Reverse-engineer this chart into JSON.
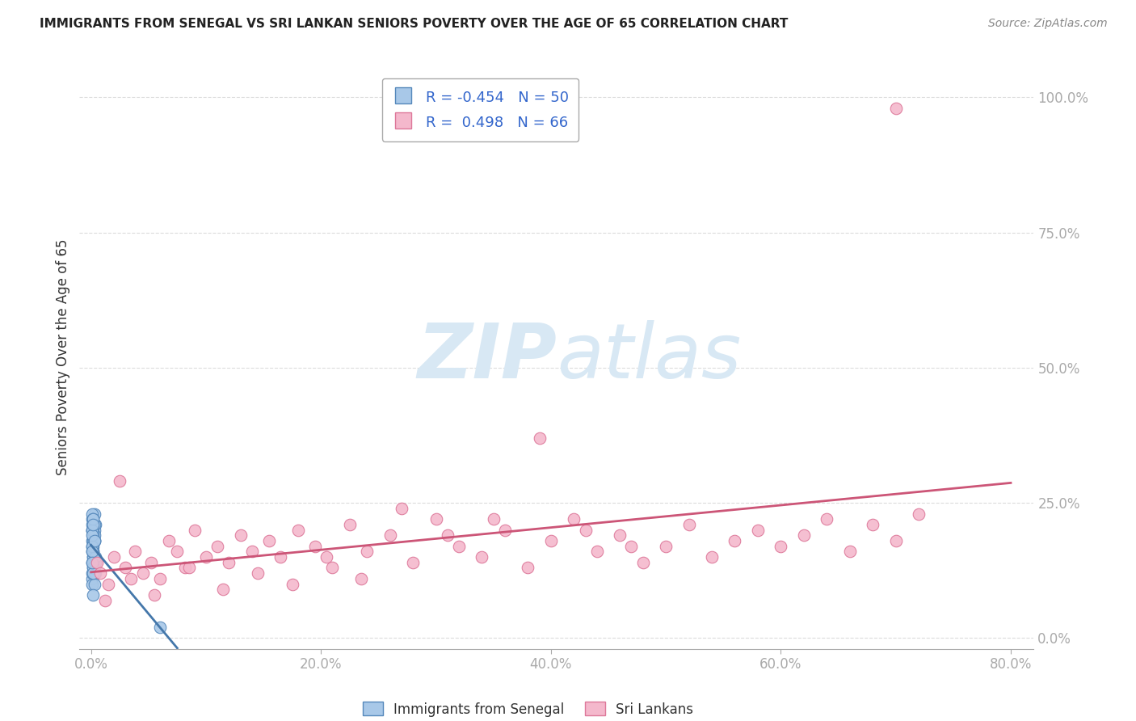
{
  "title": "IMMIGRANTS FROM SENEGAL VS SRI LANKAN SENIORS POVERTY OVER THE AGE OF 65 CORRELATION CHART",
  "source": "Source: ZipAtlas.com",
  "xlabel_tick_vals": [
    0.0,
    0.2,
    0.4,
    0.6,
    0.8
  ],
  "ylabel_tick_vals": [
    0.0,
    0.25,
    0.5,
    0.75,
    1.0
  ],
  "ylabel_tick_labels": [
    "0.0%",
    "25.0%",
    "50.0%",
    "75.0%",
    "100.0%"
  ],
  "ylabel_label": "Seniors Poverty Over the Age of 65",
  "legend_labels": [
    "Immigrants from Senegal",
    "Sri Lankans"
  ],
  "blue_R": -0.454,
  "blue_N": 50,
  "pink_R": 0.498,
  "pink_N": 66,
  "blue_color": "#a8c8e8",
  "blue_edge_color": "#5588bb",
  "blue_line_color": "#4477aa",
  "pink_color": "#f4b8cc",
  "pink_edge_color": "#dd7799",
  "pink_line_color": "#cc5577",
  "watermark_color": "#d8e8f4",
  "background_color": "#ffffff",
  "grid_color": "#cccccc",
  "title_color": "#222222",
  "axis_tick_color": "#3366cc",
  "blue_scatter_x": [
    0.001,
    0.002,
    0.001,
    0.003,
    0.002,
    0.001,
    0.004,
    0.002,
    0.001,
    0.003,
    0.002,
    0.001,
    0.004,
    0.002,
    0.003,
    0.001,
    0.002,
    0.003,
    0.001,
    0.002,
    0.003,
    0.001,
    0.002,
    0.001,
    0.003,
    0.002,
    0.001,
    0.004,
    0.002,
    0.001,
    0.003,
    0.002,
    0.001,
    0.003,
    0.002,
    0.001,
    0.003,
    0.002,
    0.004,
    0.001,
    0.002,
    0.001,
    0.003,
    0.002,
    0.001,
    0.002,
    0.003,
    0.001,
    0.06,
    0.002
  ],
  "blue_scatter_y": [
    0.22,
    0.2,
    0.18,
    0.23,
    0.15,
    0.17,
    0.21,
    0.19,
    0.14,
    0.2,
    0.16,
    0.23,
    0.12,
    0.18,
    0.14,
    0.2,
    0.17,
    0.13,
    0.21,
    0.15,
    0.19,
    0.11,
    0.22,
    0.16,
    0.18,
    0.13,
    0.2,
    0.14,
    0.19,
    0.12,
    0.21,
    0.16,
    0.1,
    0.18,
    0.14,
    0.2,
    0.12,
    0.22,
    0.15,
    0.17,
    0.13,
    0.19,
    0.1,
    0.21,
    0.16,
    0.12,
    0.18,
    0.14,
    0.02,
    0.08
  ],
  "pink_scatter_x": [
    0.005,
    0.008,
    0.015,
    0.02,
    0.025,
    0.03,
    0.038,
    0.045,
    0.052,
    0.06,
    0.068,
    0.075,
    0.082,
    0.09,
    0.1,
    0.11,
    0.12,
    0.13,
    0.14,
    0.155,
    0.165,
    0.18,
    0.195,
    0.21,
    0.225,
    0.24,
    0.26,
    0.28,
    0.3,
    0.32,
    0.34,
    0.36,
    0.38,
    0.4,
    0.42,
    0.44,
    0.46,
    0.48,
    0.5,
    0.52,
    0.54,
    0.56,
    0.58,
    0.6,
    0.62,
    0.64,
    0.66,
    0.68,
    0.7,
    0.72,
    0.012,
    0.035,
    0.055,
    0.085,
    0.115,
    0.145,
    0.175,
    0.205,
    0.235,
    0.27,
    0.31,
    0.35,
    0.39,
    0.43,
    0.47,
    0.7
  ],
  "pink_scatter_y": [
    0.14,
    0.12,
    0.1,
    0.15,
    0.29,
    0.13,
    0.16,
    0.12,
    0.14,
    0.11,
    0.18,
    0.16,
    0.13,
    0.2,
    0.15,
    0.17,
    0.14,
    0.19,
    0.16,
    0.18,
    0.15,
    0.2,
    0.17,
    0.13,
    0.21,
    0.16,
    0.19,
    0.14,
    0.22,
    0.17,
    0.15,
    0.2,
    0.13,
    0.18,
    0.22,
    0.16,
    0.19,
    0.14,
    0.17,
    0.21,
    0.15,
    0.18,
    0.2,
    0.17,
    0.19,
    0.22,
    0.16,
    0.21,
    0.18,
    0.23,
    0.07,
    0.11,
    0.08,
    0.13,
    0.09,
    0.12,
    0.1,
    0.15,
    0.11,
    0.24,
    0.19,
    0.22,
    0.37,
    0.2,
    0.17,
    0.98
  ],
  "xlim": [
    -0.01,
    0.82
  ],
  "ylim": [
    -0.02,
    1.06
  ]
}
